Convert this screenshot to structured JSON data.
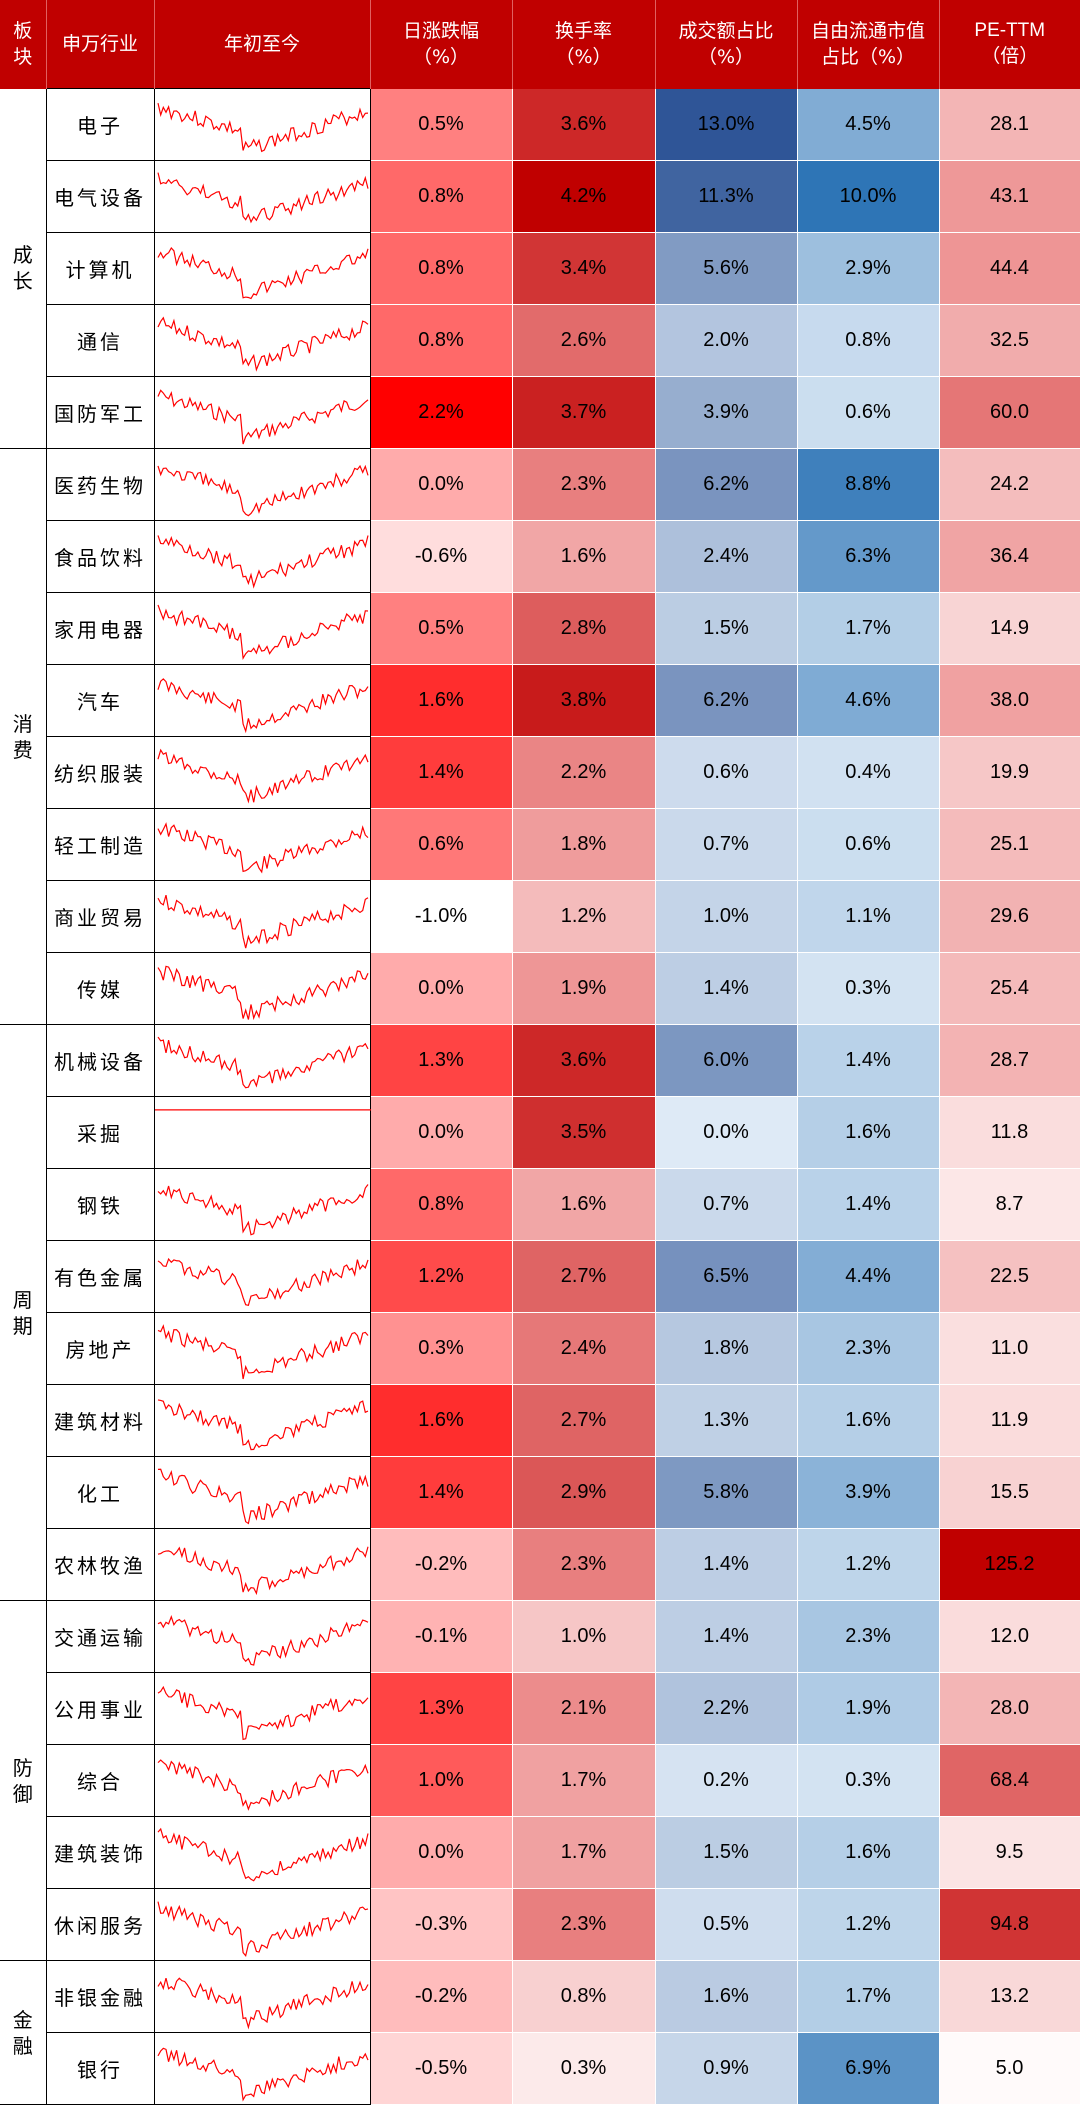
{
  "colors": {
    "header_bg": "#c00000",
    "header_text": "#ffffff",
    "red_max": "#ff0000",
    "blue_max": "#2f5597",
    "spark_line": "#ff0000"
  },
  "chart_data": {
    "type": "table",
    "header": {
      "sector": "板块",
      "industry": "申万行业",
      "ytd": "年初至今",
      "daily_change_1": "日涨跌幅",
      "daily_change_2": "（%）",
      "turnover_1": "换手率",
      "turnover_2": "（%）",
      "volume_share_1": "成交额占比",
      "volume_share_2": "（%）",
      "float_cap_share_1": "自由流通市值",
      "float_cap_share_2": "占比（%）",
      "pe_1": "PE-TTM",
      "pe_2": "（倍）"
    },
    "sectors": [
      {
        "name": "成长",
        "count": 5
      },
      {
        "name": "消费",
        "count": 8
      },
      {
        "name": "周期",
        "count": 8
      },
      {
        "name": "防御",
        "count": 5
      },
      {
        "name": "金融",
        "count": 2
      }
    ],
    "rows": [
      {
        "industry": "电子",
        "daily": "0.5%",
        "turnover": "3.6%",
        "volume_share": "13.0%",
        "float_share": "4.5%",
        "pe": "28.1"
      },
      {
        "industry": "电气设备",
        "daily": "0.8%",
        "turnover": "4.2%",
        "volume_share": "11.3%",
        "float_share": "10.0%",
        "pe": "43.1"
      },
      {
        "industry": "计算机",
        "daily": "0.8%",
        "turnover": "3.4%",
        "volume_share": "5.6%",
        "float_share": "2.9%",
        "pe": "44.4"
      },
      {
        "industry": "通信",
        "daily": "0.8%",
        "turnover": "2.6%",
        "volume_share": "2.0%",
        "float_share": "0.8%",
        "pe": "32.5"
      },
      {
        "industry": "国防军工",
        "daily": "2.2%",
        "turnover": "3.7%",
        "volume_share": "3.9%",
        "float_share": "0.6%",
        "pe": "60.0"
      },
      {
        "industry": "医药生物",
        "daily": "0.0%",
        "turnover": "2.3%",
        "volume_share": "6.2%",
        "float_share": "8.8%",
        "pe": "24.2"
      },
      {
        "industry": "食品饮料",
        "daily": "-0.6%",
        "turnover": "1.6%",
        "volume_share": "2.4%",
        "float_share": "6.3%",
        "pe": "36.4"
      },
      {
        "industry": "家用电器",
        "daily": "0.5%",
        "turnover": "2.8%",
        "volume_share": "1.5%",
        "float_share": "1.7%",
        "pe": "14.9"
      },
      {
        "industry": "汽车",
        "daily": "1.6%",
        "turnover": "3.8%",
        "volume_share": "6.2%",
        "float_share": "4.6%",
        "pe": "38.0"
      },
      {
        "industry": "纺织服装",
        "daily": "1.4%",
        "turnover": "2.2%",
        "volume_share": "0.6%",
        "float_share": "0.4%",
        "pe": "19.9"
      },
      {
        "industry": "轻工制造",
        "daily": "0.6%",
        "turnover": "1.8%",
        "volume_share": "0.7%",
        "float_share": "0.6%",
        "pe": "25.1"
      },
      {
        "industry": "商业贸易",
        "daily": "-1.0%",
        "turnover": "1.2%",
        "volume_share": "1.0%",
        "float_share": "1.1%",
        "pe": "29.6"
      },
      {
        "industry": "传媒",
        "daily": "0.0%",
        "turnover": "1.9%",
        "volume_share": "1.4%",
        "float_share": "0.3%",
        "pe": "25.4"
      },
      {
        "industry": "机械设备",
        "daily": "1.3%",
        "turnover": "3.6%",
        "volume_share": "6.0%",
        "float_share": "1.4%",
        "pe": "28.7"
      },
      {
        "industry": "采掘",
        "daily": "0.0%",
        "turnover": "3.5%",
        "volume_share": "0.0%",
        "float_share": "1.6%",
        "pe": "11.8"
      },
      {
        "industry": "钢铁",
        "daily": "0.8%",
        "turnover": "1.6%",
        "volume_share": "0.7%",
        "float_share": "1.4%",
        "pe": "8.7"
      },
      {
        "industry": "有色金属",
        "daily": "1.2%",
        "turnover": "2.7%",
        "volume_share": "6.5%",
        "float_share": "4.4%",
        "pe": "22.5"
      },
      {
        "industry": "房地产",
        "daily": "0.3%",
        "turnover": "2.4%",
        "volume_share": "1.8%",
        "float_share": "2.3%",
        "pe": "11.0"
      },
      {
        "industry": "建筑材料",
        "daily": "1.6%",
        "turnover": "2.7%",
        "volume_share": "1.3%",
        "float_share": "1.6%",
        "pe": "11.9"
      },
      {
        "industry": "化工",
        "daily": "1.4%",
        "turnover": "2.9%",
        "volume_share": "5.8%",
        "float_share": "3.9%",
        "pe": "15.5"
      },
      {
        "industry": "农林牧渔",
        "daily": "-0.2%",
        "turnover": "2.3%",
        "volume_share": "1.4%",
        "float_share": "1.2%",
        "pe": "125.2"
      },
      {
        "industry": "交通运输",
        "daily": "-0.1%",
        "turnover": "1.0%",
        "volume_share": "1.4%",
        "float_share": "2.3%",
        "pe": "12.0"
      },
      {
        "industry": "公用事业",
        "daily": "1.3%",
        "turnover": "2.1%",
        "volume_share": "2.2%",
        "float_share": "1.9%",
        "pe": "28.0"
      },
      {
        "industry": "综合",
        "daily": "1.0%",
        "turnover": "1.7%",
        "volume_share": "0.2%",
        "float_share": "0.3%",
        "pe": "68.4"
      },
      {
        "industry": "建筑装饰",
        "daily": "0.0%",
        "turnover": "1.7%",
        "volume_share": "1.5%",
        "float_share": "1.6%",
        "pe": "9.5"
      },
      {
        "industry": "休闲服务",
        "daily": "-0.3%",
        "turnover": "2.3%",
        "volume_share": "0.5%",
        "float_share": "1.2%",
        "pe": "94.8"
      },
      {
        "industry": "非银金融",
        "daily": "-0.2%",
        "turnover": "0.8%",
        "volume_share": "1.6%",
        "float_share": "1.7%",
        "pe": "13.2"
      },
      {
        "industry": "银行",
        "daily": "-0.5%",
        "turnover": "0.3%",
        "volume_share": "0.9%",
        "float_share": "6.9%",
        "pe": "5.0"
      }
    ]
  }
}
